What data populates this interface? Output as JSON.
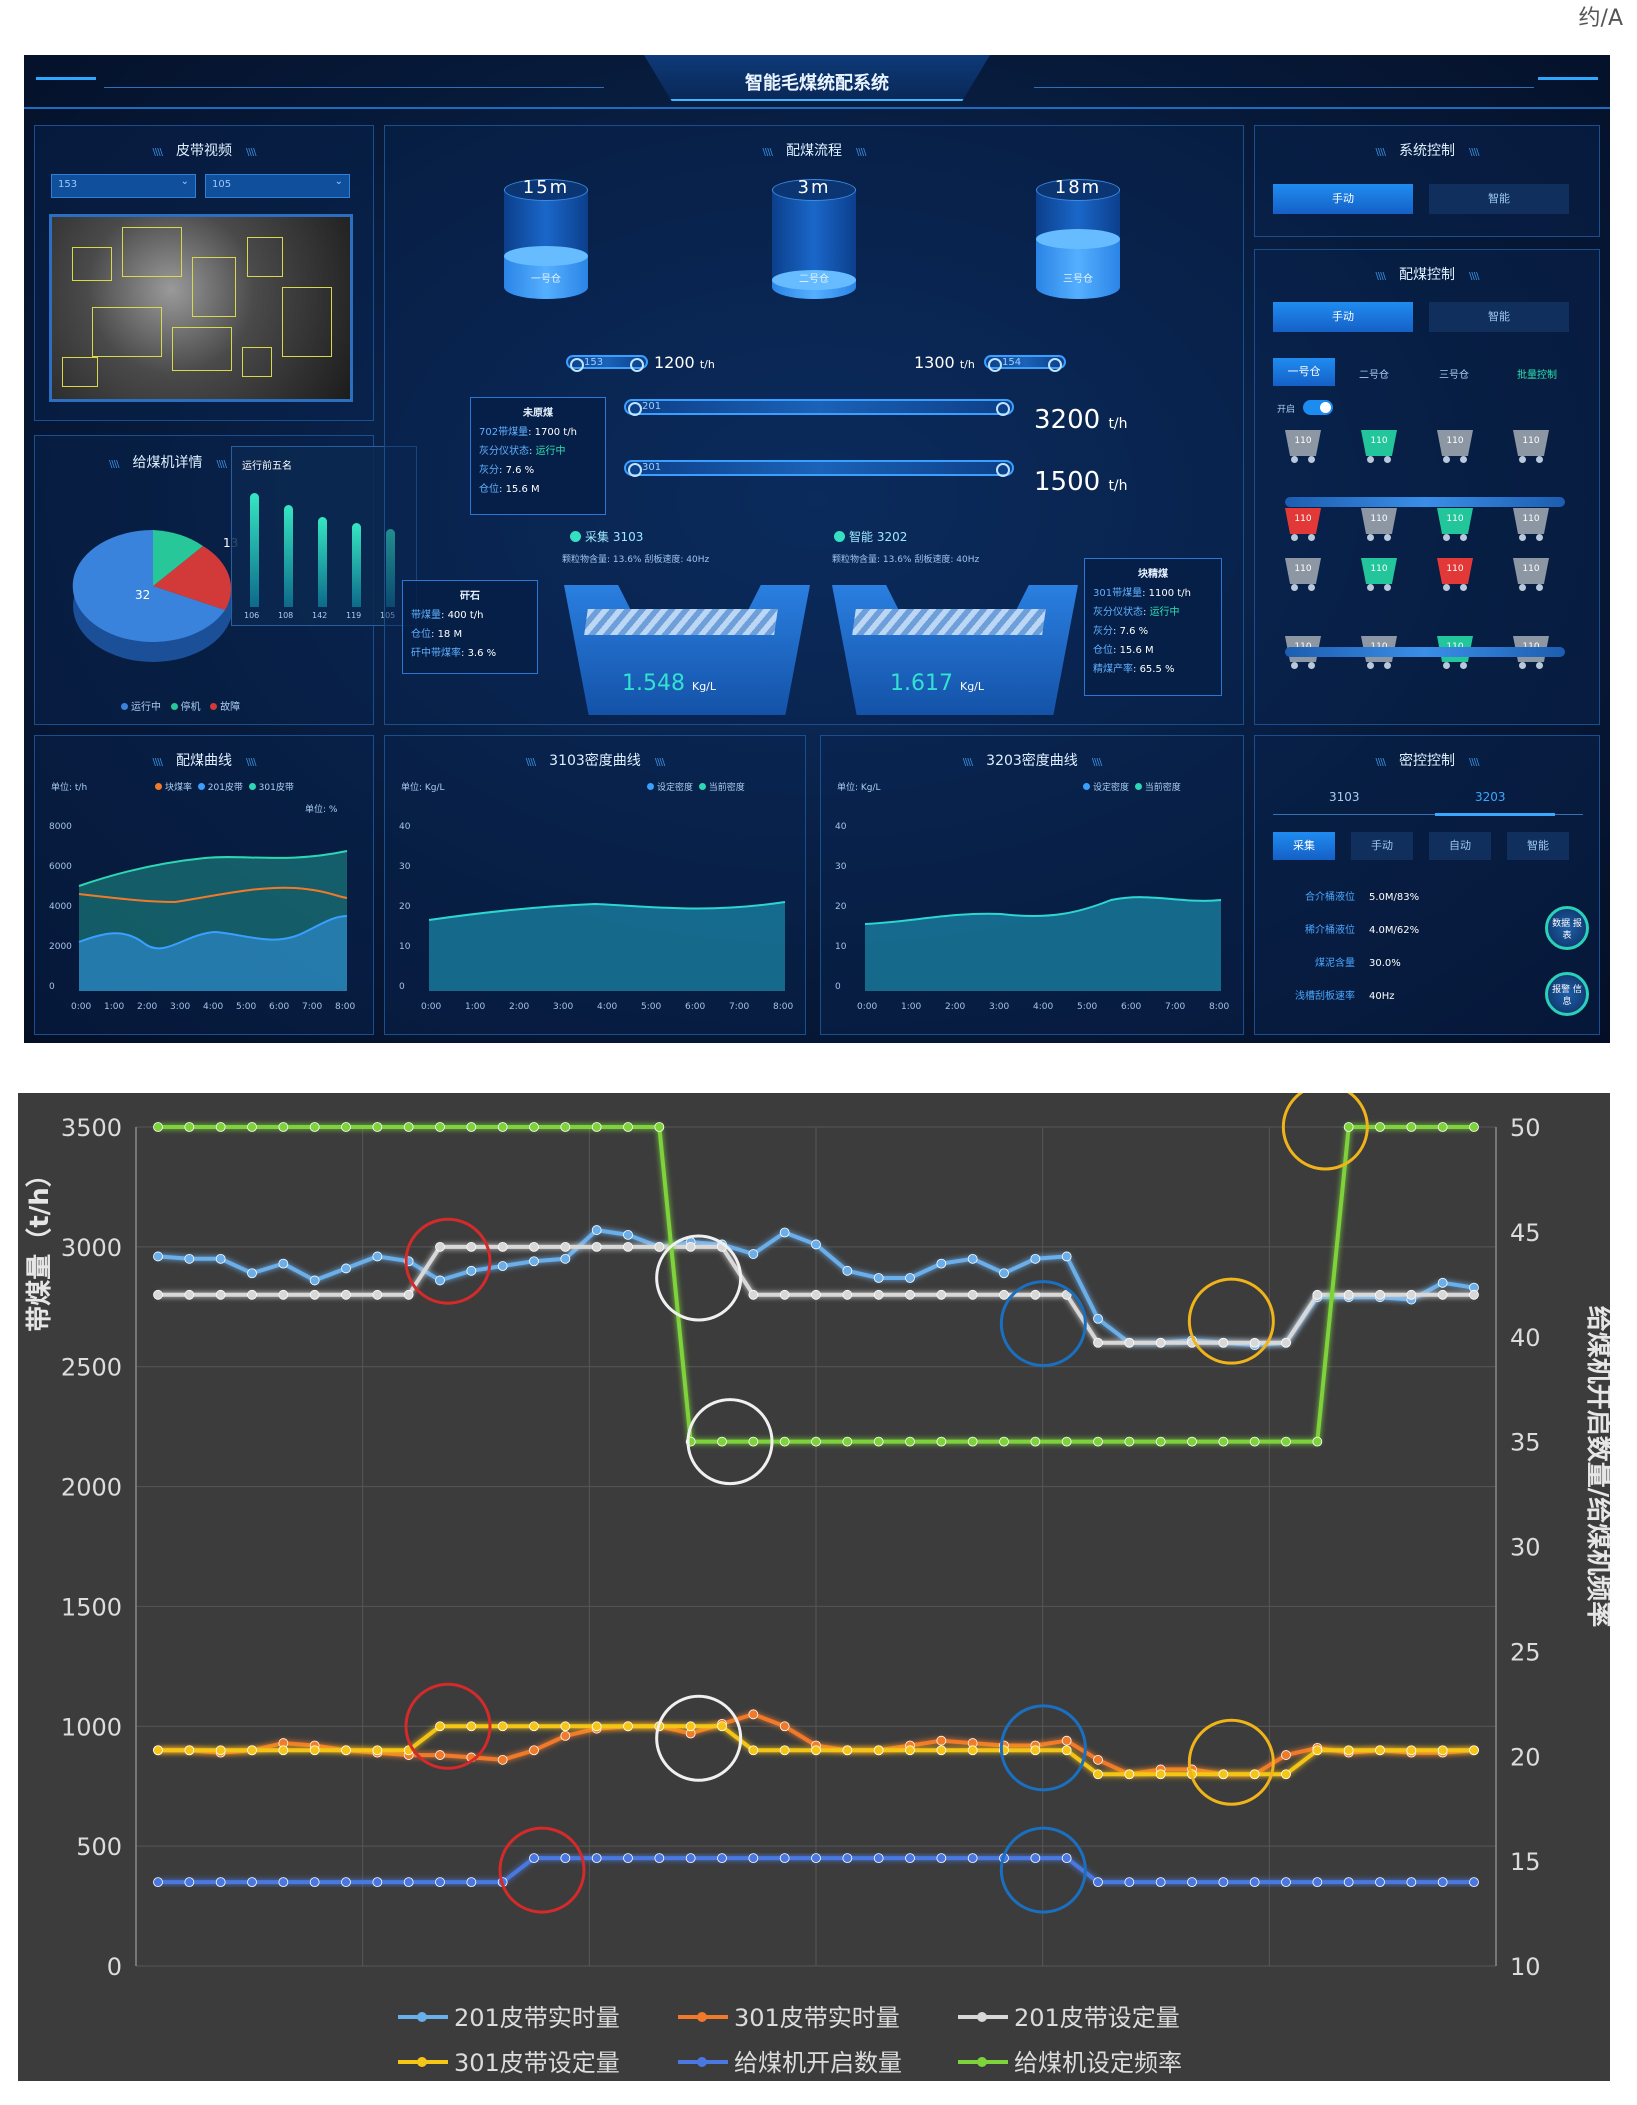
{
  "corner_glyph": "约/A",
  "dashboard": {
    "title": "智能毛煤统配系统",
    "belt_video": {
      "title": "皮带视频",
      "select_left": "153",
      "select_right": "105"
    },
    "feeder_detail": {
      "title": "给煤机详情",
      "popup_title": "运行前五名",
      "pie_value": "32",
      "pie_value2": "13",
      "bar_labels": [
        "106",
        "108",
        "142",
        "119",
        "105"
      ],
      "bar_values": [
        0.95,
        0.85,
        0.75,
        0.7,
        0.65
      ],
      "legend": [
        "运行中",
        "停机",
        "故障"
      ]
    },
    "flow": {
      "title": "配煤流程",
      "silos": [
        {
          "level": "15m",
          "name": "一号仓",
          "fill": 0.45
        },
        {
          "level": "3m",
          "name": "二号仓",
          "fill": 0.2
        },
        {
          "level": "18m",
          "name": "三号仓",
          "fill": 0.62
        }
      ],
      "left_tag": "153",
      "left_rate": "1200",
      "right_rate": "1300",
      "right_tag": "154",
      "rate_unit": "t/h",
      "belt_201": "201",
      "belt_201_value": "3200",
      "belt_301": "301",
      "belt_301_value": "1500",
      "raw_coal": {
        "title": "未原煤",
        "rows": [
          {
            "k": "702带煤量",
            "v": "1700 t/h"
          },
          {
            "k": "灰分仪状态",
            "v": "运行中"
          },
          {
            "k": "灰分",
            "v": "7.6 %"
          },
          {
            "k": "仓位",
            "v": "15.6 M"
          }
        ]
      },
      "gangue": {
        "title": "矸石",
        "rows": [
          {
            "k": "带煤量",
            "v": "400 t/h"
          },
          {
            "k": "仓位",
            "v": "18 M"
          },
          {
            "k": "矸中带煤率",
            "v": "3.6 %"
          }
        ]
      },
      "block_coal": {
        "title": "块精煤",
        "rows": [
          {
            "k": "301带煤量",
            "v": "1100 t/h"
          },
          {
            "k": "灰分仪状态",
            "v": "运行中"
          },
          {
            "k": "灰分",
            "v": "7.6 %"
          },
          {
            "k": "仓位",
            "v": "15.6 M"
          },
          {
            "k": "精煤产率",
            "v": "65.5 %"
          }
        ]
      },
      "hopper1": {
        "head": "采集 3103",
        "sub": "颗粒物含量: 13.6%   刮板速度: 40Hz",
        "value": "1.548",
        "unit": "Kg/L"
      },
      "hopper2": {
        "head": "智能 3202",
        "sub": "颗粒物含量: 13.6%   刮板速度: 40Hz",
        "value": "1.617",
        "unit": "Kg/L"
      }
    },
    "system_control": {
      "title": "系统控制",
      "btn_manual": "手动",
      "btn_smart": "智能"
    },
    "blend_control": {
      "title": "配煤控制",
      "btn_manual": "手动",
      "btn_smart": "智能",
      "tabs": [
        "一号仓",
        "二号仓",
        "三号仓",
        "批量控制"
      ],
      "toggle_label": "开启",
      "feeder_label": "110",
      "feeder_rows": [
        [
          "gray",
          "green",
          "gray",
          "gray"
        ],
        [
          "red",
          "gray",
          "green",
          "gray"
        ],
        [
          "gray",
          "green",
          "red",
          "gray"
        ],
        [
          "gray",
          "gray",
          "green",
          "gray"
        ]
      ]
    },
    "blend_curve": {
      "title": "配煤曲线",
      "unit_left": "单位: t/h",
      "unit_right": "单位: %",
      "legend": [
        "块煤率",
        "201皮带",
        "301皮带"
      ],
      "y_ticks": [
        "8000",
        "6000",
        "4000",
        "2000",
        "0"
      ],
      "x_ticks": [
        "0:00",
        "1:00",
        "2:00",
        "3:00",
        "4:00",
        "5:00",
        "6:00",
        "7:00",
        "8:00"
      ]
    },
    "density_3103": {
      "title": "3103密度曲线",
      "unit": "单位: Kg/L",
      "legend": [
        "设定密度",
        "当前密度"
      ],
      "y_ticks": [
        "40",
        "30",
        "20",
        "10",
        "0"
      ],
      "x_ticks": [
        "0:00",
        "1:00",
        "2:00",
        "3:00",
        "4:00",
        "5:00",
        "6:00",
        "7:00",
        "8:00"
      ]
    },
    "density_3203": {
      "title": "3203密度曲线",
      "unit": "单位: Kg/L",
      "legend": [
        "设定密度",
        "当前密度"
      ],
      "y_ticks": [
        "40",
        "30",
        "20",
        "10",
        "0"
      ],
      "x_ticks": [
        "0:00",
        "1:00",
        "2:00",
        "3:00",
        "4:00",
        "5:00",
        "6:00",
        "7:00",
        "8:00"
      ]
    },
    "density_control": {
      "title": "密控控制",
      "tab_a": "3103",
      "tab_b": "3203",
      "buttons": [
        "采集",
        "手动",
        "自动",
        "智能"
      ],
      "rows": [
        {
          "k": "合介桶液位",
          "v": "5.0M/83%"
        },
        {
          "k": "稀介桶液位",
          "v": "4.0M/62%"
        },
        {
          "k": "煤泥含量",
          "v": "30.0%"
        },
        {
          "k": "浅槽刮板速率",
          "v": "40Hz"
        }
      ],
      "round_btn_1": "数据 报表",
      "round_btn_2": "报警 信息"
    }
  },
  "chart_data": {
    "type": "line",
    "y_left_label": "带煤量（t/h）",
    "y_right_label": "给煤机开启数量/给煤机频率",
    "ylim_left": [
      0,
      3500
    ],
    "ylim_right": [
      10,
      50
    ],
    "y_left_ticks": [
      "0",
      "500",
      "1000",
      "1500",
      "2000",
      "2500",
      "3000",
      "3500"
    ],
    "y_right_ticks": [
      "10",
      "15",
      "20",
      "25",
      "30",
      "35",
      "40",
      "45",
      "50"
    ],
    "grid": true,
    "legend_position": "bottom",
    "point_count": 43,
    "series": [
      {
        "name": "201皮带实时量",
        "axis": "left",
        "color": "#6aaeea",
        "values": [
          2960,
          2950,
          2950,
          2890,
          2930,
          2860,
          2910,
          2960,
          2940,
          2860,
          2900,
          2920,
          2940,
          2950,
          3070,
          3050,
          3000,
          3020,
          3010,
          2970,
          3060,
          3010,
          2900,
          2870,
          2870,
          2930,
          2950,
          2890,
          2950,
          2960,
          2700,
          2600,
          2600,
          2610,
          2600,
          2590,
          2600,
          2790,
          2790,
          2790,
          2780,
          2850,
          2830
        ]
      },
      {
        "name": "301皮带实时量",
        "axis": "left",
        "color": "#f07a2a",
        "values": [
          900,
          900,
          890,
          900,
          930,
          920,
          900,
          890,
          880,
          880,
          870,
          860,
          900,
          960,
          990,
          1000,
          1000,
          970,
          1010,
          1050,
          1000,
          920,
          900,
          900,
          920,
          940,
          930,
          920,
          920,
          940,
          860,
          800,
          820,
          820,
          800,
          800,
          880,
          910,
          890,
          900,
          890,
          890,
          900
        ]
      },
      {
        "name": "201皮带设定量",
        "axis": "left",
        "color": "#d8d8d8",
        "values": [
          2800,
          2800,
          2800,
          2800,
          2800,
          2800,
          2800,
          2800,
          2800,
          3000,
          3000,
          3000,
          3000,
          3000,
          3000,
          3000,
          3000,
          3000,
          3000,
          2800,
          2800,
          2800,
          2800,
          2800,
          2800,
          2800,
          2800,
          2800,
          2800,
          2800,
          2600,
          2600,
          2600,
          2600,
          2600,
          2600,
          2600,
          2800,
          2800,
          2800,
          2800,
          2800,
          2800
        ]
      },
      {
        "name": "301皮带设定量",
        "axis": "left",
        "color": "#f5c518",
        "values": [
          900,
          900,
          900,
          900,
          900,
          900,
          900,
          900,
          900,
          1000,
          1000,
          1000,
          1000,
          1000,
          1000,
          1000,
          1000,
          1000,
          1000,
          900,
          900,
          900,
          900,
          900,
          900,
          900,
          900,
          900,
          900,
          900,
          800,
          800,
          800,
          800,
          800,
          800,
          800,
          900,
          900,
          900,
          900,
          900,
          900
        ]
      },
      {
        "name": "给煤机开启数量",
        "axis": "left",
        "color": "#4a78e0",
        "values": [
          350,
          350,
          350,
          350,
          350,
          350,
          350,
          350,
          350,
          350,
          350,
          350,
          450,
          450,
          450,
          450,
          450,
          450,
          450,
          450,
          450,
          450,
          450,
          450,
          450,
          450,
          450,
          450,
          450,
          450,
          350,
          350,
          350,
          350,
          350,
          350,
          350,
          350,
          350,
          350,
          350,
          350,
          350
        ]
      },
      {
        "name": "给煤机设定频率",
        "axis": "right",
        "color": "#7ed23a",
        "values": [
          50,
          50,
          50,
          50,
          50,
          50,
          50,
          50,
          50,
          50,
          50,
          50,
          50,
          50,
          50,
          50,
          50,
          35,
          35,
          35,
          35,
          35,
          35,
          35,
          35,
          35,
          35,
          35,
          35,
          35,
          35,
          35,
          35,
          35,
          35,
          35,
          35,
          35,
          50,
          50,
          50,
          50,
          50
        ]
      }
    ]
  }
}
